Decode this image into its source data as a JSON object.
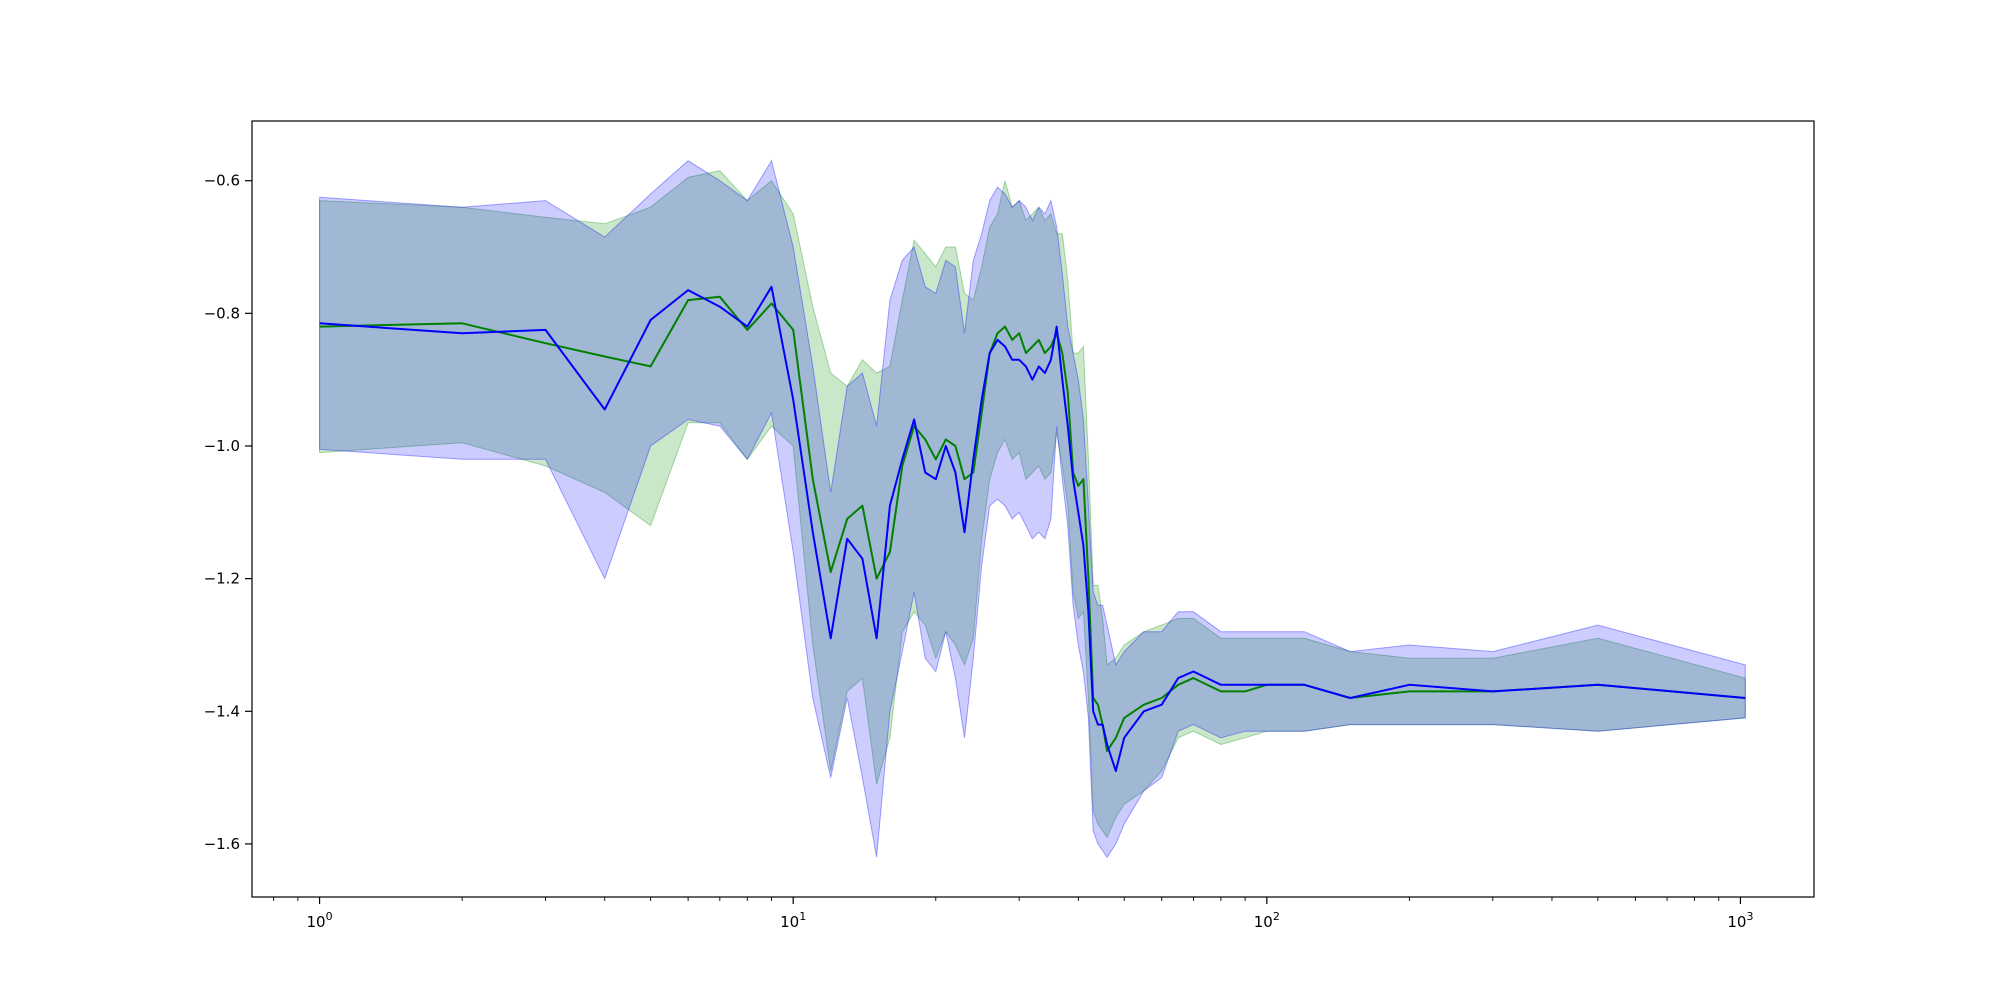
{
  "chart_data": {
    "type": "line",
    "title": "",
    "xlabel": "",
    "ylabel": "",
    "xscale": "log",
    "xlim": [
      0.72,
      1430
    ],
    "ylim": [
      -1.68,
      -0.51
    ],
    "grid": false,
    "legend": "none",
    "x_ticks": [
      {
        "value": 1,
        "base": "10",
        "exp": "0"
      },
      {
        "value": 10,
        "base": "10",
        "exp": "1"
      },
      {
        "value": 100,
        "base": "10",
        "exp": "2"
      },
      {
        "value": 1000,
        "base": "10",
        "exp": "3"
      }
    ],
    "y_ticks": [
      {
        "value": -0.6,
        "label": "−0.6"
      },
      {
        "value": -0.8,
        "label": "−0.8"
      },
      {
        "value": -1.0,
        "label": "−1.0"
      },
      {
        "value": -1.2,
        "label": "−1.2"
      },
      {
        "value": -1.4,
        "label": "−1.4"
      },
      {
        "value": -1.6,
        "label": "−1.6"
      }
    ],
    "series": [
      {
        "color": "#008000",
        "band_color": "#2ca02c",
        "band_opacity": 0.25,
        "x": [
          1,
          2,
          3,
          4,
          5,
          6,
          7,
          8,
          9,
          10,
          11,
          12,
          13,
          14,
          15,
          16,
          17,
          18,
          19,
          20,
          21,
          22,
          23,
          24,
          25,
          26,
          27,
          28,
          29,
          30,
          31,
          32,
          33,
          34,
          35,
          36,
          37,
          38,
          39,
          40,
          41,
          42,
          43,
          44,
          45,
          46,
          48,
          50,
          55,
          60,
          65,
          70,
          80,
          90,
          100,
          120,
          150,
          200,
          300,
          500,
          1024
        ],
        "y": [
          -0.82,
          -0.815,
          -0.845,
          -0.865,
          -0.88,
          -0.78,
          -0.775,
          -0.825,
          -0.785,
          -0.825,
          -1.05,
          -1.19,
          -1.11,
          -1.09,
          -1.2,
          -1.16,
          -1.03,
          -0.97,
          -0.99,
          -1.02,
          -0.99,
          -1.0,
          -1.05,
          -1.04,
          -0.95,
          -0.86,
          -0.83,
          -0.82,
          -0.84,
          -0.83,
          -0.86,
          -0.85,
          -0.84,
          -0.86,
          -0.85,
          -0.83,
          -0.86,
          -0.92,
          -1.04,
          -1.06,
          -1.05,
          -1.2,
          -1.38,
          -1.39,
          -1.42,
          -1.46,
          -1.44,
          -1.41,
          -1.39,
          -1.38,
          -1.36,
          -1.35,
          -1.37,
          -1.37,
          -1.36,
          -1.36,
          -1.38,
          -1.37,
          -1.37,
          -1.36,
          -1.38
        ],
        "lower": [
          -1.01,
          -0.995,
          -1.03,
          -1.07,
          -1.12,
          -0.965,
          -0.965,
          -1.02,
          -0.97,
          -1.0,
          -1.3,
          -1.49,
          -1.37,
          -1.35,
          -1.51,
          -1.44,
          -1.28,
          -1.25,
          -1.27,
          -1.32,
          -1.28,
          -1.3,
          -1.33,
          -1.29,
          -1.14,
          -1.05,
          -1.01,
          -0.99,
          -1.02,
          -1.01,
          -1.05,
          -1.04,
          -1.03,
          -1.05,
          -1.04,
          -0.98,
          -1.03,
          -1.09,
          -1.22,
          -1.26,
          -1.25,
          -1.38,
          -1.55,
          -1.57,
          -1.58,
          -1.59,
          -1.56,
          -1.54,
          -1.52,
          -1.49,
          -1.44,
          -1.43,
          -1.45,
          -1.44,
          -1.43,
          -1.43,
          -1.42,
          -1.42,
          -1.42,
          -1.43,
          -1.41
        ],
        "upper": [
          -0.63,
          -0.64,
          -0.655,
          -0.665,
          -0.64,
          -0.595,
          -0.585,
          -0.63,
          -0.6,
          -0.65,
          -0.79,
          -0.89,
          -0.91,
          -0.87,
          -0.89,
          -0.88,
          -0.78,
          -0.69,
          -0.71,
          -0.73,
          -0.7,
          -0.7,
          -0.77,
          -0.78,
          -0.73,
          -0.67,
          -0.65,
          -0.6,
          -0.64,
          -0.63,
          -0.66,
          -0.65,
          -0.64,
          -0.66,
          -0.65,
          -0.68,
          -0.68,
          -0.75,
          -0.86,
          -0.86,
          -0.85,
          -1.02,
          -1.21,
          -1.21,
          -1.26,
          -1.33,
          -1.32,
          -1.3,
          -1.28,
          -1.27,
          -1.26,
          -1.26,
          -1.29,
          -1.29,
          -1.29,
          -1.29,
          -1.31,
          -1.32,
          -1.32,
          -1.29,
          -1.35
        ]
      },
      {
        "color": "#0000ff",
        "band_color": "#0000ff",
        "band_opacity": 0.2,
        "x": [
          1,
          2,
          3,
          4,
          5,
          6,
          7,
          8,
          9,
          10,
          11,
          12,
          13,
          14,
          15,
          16,
          17,
          18,
          19,
          20,
          21,
          22,
          23,
          24,
          25,
          26,
          27,
          28,
          29,
          30,
          31,
          32,
          33,
          34,
          35,
          36,
          37,
          38,
          39,
          40,
          41,
          42,
          43,
          44,
          45,
          46,
          48,
          50,
          55,
          60,
          65,
          70,
          80,
          90,
          100,
          120,
          150,
          200,
          300,
          500,
          1024
        ],
        "y": [
          -0.815,
          -0.83,
          -0.825,
          -0.945,
          -0.81,
          -0.765,
          -0.79,
          -0.82,
          -0.76,
          -0.93,
          -1.13,
          -1.29,
          -1.14,
          -1.17,
          -1.29,
          -1.09,
          -1.02,
          -0.96,
          -1.04,
          -1.05,
          -1.0,
          -1.04,
          -1.13,
          -1.02,
          -0.93,
          -0.86,
          -0.84,
          -0.85,
          -0.87,
          -0.87,
          -0.88,
          -0.9,
          -0.88,
          -0.89,
          -0.87,
          -0.82,
          -0.9,
          -0.97,
          -1.05,
          -1.1,
          -1.15,
          -1.25,
          -1.4,
          -1.42,
          -1.42,
          -1.45,
          -1.49,
          -1.44,
          -1.4,
          -1.39,
          -1.35,
          -1.34,
          -1.36,
          -1.36,
          -1.36,
          -1.36,
          -1.38,
          -1.36,
          -1.37,
          -1.36,
          -1.38
        ],
        "lower": [
          -1.005,
          -1.02,
          -1.02,
          -1.2,
          -1.0,
          -0.96,
          -0.97,
          -1.02,
          -0.95,
          -1.16,
          -1.38,
          -1.5,
          -1.38,
          -1.5,
          -1.62,
          -1.4,
          -1.31,
          -1.22,
          -1.32,
          -1.34,
          -1.28,
          -1.35,
          -1.44,
          -1.32,
          -1.18,
          -1.09,
          -1.08,
          -1.09,
          -1.11,
          -1.1,
          -1.12,
          -1.14,
          -1.13,
          -1.14,
          -1.11,
          -0.97,
          -1.05,
          -1.12,
          -1.24,
          -1.3,
          -1.34,
          -1.41,
          -1.58,
          -1.6,
          -1.61,
          -1.62,
          -1.6,
          -1.57,
          -1.52,
          -1.5,
          -1.43,
          -1.42,
          -1.44,
          -1.43,
          -1.43,
          -1.43,
          -1.42,
          -1.42,
          -1.42,
          -1.43,
          -1.41
        ],
        "upper": [
          -0.625,
          -0.64,
          -0.63,
          -0.685,
          -0.62,
          -0.57,
          -0.6,
          -0.63,
          -0.57,
          -0.7,
          -0.88,
          -1.07,
          -0.91,
          -0.89,
          -0.97,
          -0.78,
          -0.72,
          -0.7,
          -0.76,
          -0.77,
          -0.72,
          -0.73,
          -0.83,
          -0.72,
          -0.68,
          -0.63,
          -0.61,
          -0.62,
          -0.64,
          -0.63,
          -0.64,
          -0.66,
          -0.64,
          -0.65,
          -0.63,
          -0.67,
          -0.74,
          -0.82,
          -0.86,
          -0.9,
          -0.96,
          -1.09,
          -1.22,
          -1.24,
          -1.24,
          -1.27,
          -1.33,
          -1.31,
          -1.28,
          -1.28,
          -1.25,
          -1.25,
          -1.28,
          -1.28,
          -1.28,
          -1.28,
          -1.31,
          -1.3,
          -1.31,
          -1.27,
          -1.33
        ]
      }
    ]
  }
}
